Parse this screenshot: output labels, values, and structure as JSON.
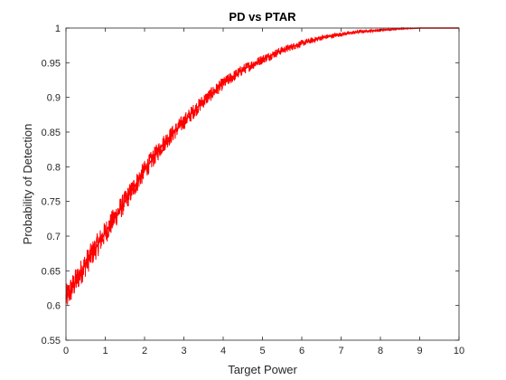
{
  "chart_data": {
    "type": "line",
    "title": "PD vs PTAR",
    "xlabel": "Target Power",
    "ylabel": "Probability of Detection",
    "xlim": [
      0,
      10
    ],
    "ylim": [
      0.55,
      1
    ],
    "xticks": [
      0,
      1,
      2,
      3,
      4,
      5,
      6,
      7,
      8,
      9,
      10
    ],
    "xtick_labels": [
      "0",
      "1",
      "2",
      "3",
      "4",
      "5",
      "6",
      "7",
      "8",
      "9",
      "10"
    ],
    "yticks": [
      0.55,
      0.6,
      0.65,
      0.7,
      0.75,
      0.8,
      0.85,
      0.9,
      0.95,
      1
    ],
    "ytick_labels": [
      "0.55",
      "0.6",
      "0.65",
      "0.7",
      "0.75",
      "0.8",
      "0.85",
      "0.9",
      "0.95",
      "1"
    ],
    "grid": false,
    "series": [
      {
        "color": "#ff0000",
        "x": [
          0,
          0.5,
          1,
          1.5,
          2,
          2.5,
          3,
          3.5,
          4,
          4.5,
          5,
          5.5,
          6,
          6.5,
          7,
          7.5,
          8,
          8.5,
          9,
          9.5,
          10
        ],
        "y": [
          0.61,
          0.66,
          0.705,
          0.75,
          0.795,
          0.835,
          0.865,
          0.895,
          0.92,
          0.94,
          0.955,
          0.968,
          0.978,
          0.986,
          0.991,
          0.995,
          0.997,
          0.999,
          1.0,
          1.0,
          1.0
        ]
      }
    ]
  }
}
